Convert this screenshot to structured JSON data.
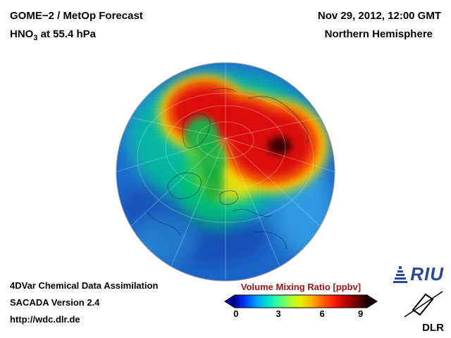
{
  "header": {
    "title_line1": "GOME−2 / MetOp Forecast",
    "species_prefix": "HNO",
    "species_sub": "3",
    "species_suffix": " at 55.4 hPa",
    "datetime": "Nov 29, 2012, 12:00 GMT",
    "region": "Northern Hemisphere"
  },
  "footer": {
    "line1": "4DVar Chemical Data Assimilation",
    "line2": "SACADA Version 2.4",
    "line3": "http://wdc.dlr.de"
  },
  "colorbar": {
    "title": "Volume Mixing Ratio [ppbv]",
    "title_color": "#a01414",
    "ticks": [
      "0",
      "3",
      "6",
      "9"
    ],
    "tick_positions_pct": [
      1,
      33,
      66,
      95
    ],
    "gradient": [
      "#0000a0",
      "#0040ff",
      "#00a0ff",
      "#00e0d0",
      "#40ff90",
      "#a0ff40",
      "#e8f000",
      "#ffb000",
      "#ff6000",
      "#ff2000",
      "#c00000",
      "#700000",
      "#200000"
    ],
    "left_arrow_color": "#0000a0",
    "right_arrow_color": "#160000"
  },
  "logos": {
    "riu_text": "RIU",
    "dlr_text": "DLR"
  },
  "chart_data": {
    "type": "heatmap",
    "title": "GOME−2 / MetOp Forecast of HNO3 at 55.4 hPa",
    "projection": "orthographic globe, Northern Hemisphere polar view",
    "variable": "HNO3 volume mixing ratio",
    "units": "ppbv",
    "valid_time": "Nov 29, 2012, 12:00 GMT",
    "colorbar_range": [
      0,
      10
    ],
    "colorbar_ticks": [
      0,
      3,
      6,
      9
    ],
    "legend_position": "bottom center",
    "grid": "graticule with coastlines overlaid",
    "regions": [
      {
        "area": "Arctic vortex over northern Siberia / Barents Sea",
        "value_ppbv": 8.5
      },
      {
        "area": "dark maximum core near Novaya Zemlya",
        "value_ppbv": 9.8
      },
      {
        "area": "secondary red lobe over Canadian Arctic / north Greenland",
        "value_ppbv": 8.0
      },
      {
        "area": "green patch over Greenland and Scandinavia tongue",
        "value_ppbv": 4.5
      },
      {
        "area": "yellow-orange collar around vortex (N Europe, N Russia)",
        "value_ppbv": 6.0
      },
      {
        "area": "mid-latitude ring (N Atlantic, Europe, N America)",
        "value_ppbv": 2.5
      },
      {
        "area": "subtropical globe edge and low latitudes",
        "value_ppbv": 1.0
      }
    ]
  }
}
